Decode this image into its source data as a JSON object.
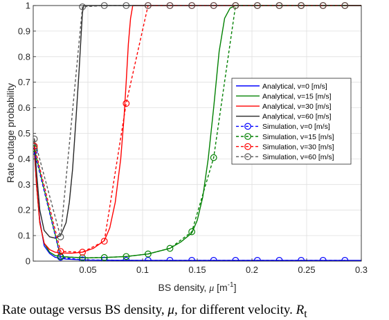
{
  "chart_data": {
    "type": "line",
    "title": "",
    "xlabel_main": "BS density, ",
    "xlabel_symbol": "μ",
    "xlabel_unit_open": " [m",
    "xlabel_unit_exp": "-1",
    "xlabel_unit_close": "]",
    "ylabel": "Rate outage probability",
    "xlim": [
      0,
      0.3
    ],
    "ylim": [
      0,
      1
    ],
    "xticks": [
      0.05,
      0.1,
      0.15,
      0.2,
      0.25,
      0.3
    ],
    "xtick_labels": [
      "0.05",
      "0.1",
      "0.15",
      "0.2",
      "0.25",
      "0.3"
    ],
    "yticks": [
      0,
      0.1,
      0.2,
      0.3,
      0.4,
      0.5,
      0.6,
      0.7,
      0.8,
      0.9,
      1
    ],
    "ytick_labels": [
      "0",
      "0.1",
      "0.2",
      "0.3",
      "0.4",
      "0.5",
      "0.6",
      "0.7",
      "0.8",
      "0.9",
      "1"
    ],
    "grid": true,
    "legend_position": "center-right",
    "series": [
      {
        "name": "Analytical, v=0 [m/s]",
        "style": "solid",
        "marker": "none",
        "color": "#0000ff",
        "x": [
          0.001,
          0.003,
          0.006,
          0.01,
          0.015,
          0.02,
          0.03,
          0.05,
          0.1,
          0.15,
          0.2,
          0.25,
          0.3
        ],
        "y": [
          0.43,
          0.3,
          0.16,
          0.06,
          0.03,
          0.015,
          0.008,
          0.004,
          0.003,
          0.003,
          0.003,
          0.003,
          0.003
        ]
      },
      {
        "name": "Analytical, v=15 [m/s]",
        "style": "solid",
        "marker": "none",
        "color": "#008000",
        "x": [
          0.001,
          0.003,
          0.006,
          0.01,
          0.015,
          0.02,
          0.025,
          0.035,
          0.05,
          0.065,
          0.085,
          0.105,
          0.125,
          0.135,
          0.145,
          0.15,
          0.155,
          0.16,
          0.165,
          0.17,
          0.175,
          0.18,
          0.185,
          0.3
        ],
        "y": [
          0.44,
          0.3,
          0.15,
          0.07,
          0.035,
          0.022,
          0.018,
          0.015,
          0.013,
          0.014,
          0.018,
          0.028,
          0.05,
          0.075,
          0.11,
          0.16,
          0.25,
          0.4,
          0.6,
          0.82,
          0.95,
          0.99,
          1.0,
          1.0
        ]
      },
      {
        "name": "Analytical, v=30 [m/s]",
        "style": "solid",
        "marker": "none",
        "color": "#ff0000",
        "x": [
          0.001,
          0.003,
          0.006,
          0.01,
          0.015,
          0.02,
          0.025,
          0.035,
          0.045,
          0.055,
          0.065,
          0.07,
          0.075,
          0.08,
          0.083,
          0.085,
          0.087,
          0.089,
          0.091,
          0.3
        ],
        "y": [
          0.45,
          0.3,
          0.15,
          0.07,
          0.045,
          0.035,
          0.032,
          0.031,
          0.035,
          0.05,
          0.08,
          0.13,
          0.23,
          0.4,
          0.56,
          0.7,
          0.85,
          0.95,
          1.0,
          1.0
        ]
      },
      {
        "name": "Analytical, v=60 [m/s]",
        "style": "solid",
        "marker": "none",
        "color": "#262626",
        "x": [
          0.001,
          0.003,
          0.006,
          0.01,
          0.015,
          0.02,
          0.025,
          0.03,
          0.033,
          0.036,
          0.039,
          0.042,
          0.044,
          0.045,
          0.046,
          0.3
        ],
        "y": [
          0.48,
          0.35,
          0.2,
          0.12,
          0.095,
          0.09,
          0.1,
          0.15,
          0.23,
          0.36,
          0.55,
          0.75,
          0.9,
          0.97,
          1.0,
          1.0
        ]
      },
      {
        "name": "Simulation, v=0 [m/s]",
        "style": "dashed",
        "marker": "circle",
        "color": "#0000ff",
        "x": [
          0.001,
          0.025,
          0.045,
          0.065,
          0.085,
          0.105,
          0.125,
          0.145,
          0.165,
          0.185,
          0.205,
          0.225,
          0.245,
          0.265,
          0.285
        ],
        "y": [
          0.43,
          0.015,
          0.005,
          0.004,
          0.003,
          0.003,
          0.003,
          0.003,
          0.003,
          0.003,
          0.003,
          0.003,
          0.003,
          0.003,
          0.003
        ]
      },
      {
        "name": "Simulation, v=15 [m/s]",
        "style": "dashed",
        "marker": "circle",
        "color": "#008000",
        "x": [
          0.001,
          0.025,
          0.045,
          0.065,
          0.085,
          0.105,
          0.125,
          0.145,
          0.165,
          0.185,
          0.205,
          0.225,
          0.245,
          0.265,
          0.285
        ],
        "y": [
          0.44,
          0.018,
          0.013,
          0.014,
          0.018,
          0.028,
          0.05,
          0.115,
          0.405,
          1.0,
          1.0,
          1.0,
          1.0,
          1.0,
          1.0
        ]
      },
      {
        "name": "Simulation, v=30 [m/s]",
        "style": "dashed",
        "marker": "circle",
        "color": "#ff0000",
        "x": [
          0.001,
          0.025,
          0.045,
          0.065,
          0.085,
          0.105,
          0.125,
          0.145,
          0.165,
          0.185,
          0.205,
          0.225,
          0.245,
          0.265,
          0.285
        ],
        "y": [
          0.45,
          0.038,
          0.035,
          0.078,
          0.617,
          1.0,
          1.0,
          1.0,
          1.0,
          1.0,
          1.0,
          1.0,
          1.0,
          1.0,
          1.0
        ]
      },
      {
        "name": "Simulation, v=60 [m/s]",
        "style": "dashed",
        "marker": "circle",
        "color": "#5a5a5a",
        "x": [
          0.001,
          0.025,
          0.045,
          0.065,
          0.085,
          0.105,
          0.125,
          0.145,
          0.165,
          0.185,
          0.205,
          0.225,
          0.245,
          0.265,
          0.285
        ],
        "y": [
          0.478,
          0.095,
          0.995,
          1.0,
          1.0,
          1.0,
          1.0,
          1.0,
          1.0,
          1.0,
          1.0,
          1.0,
          1.0,
          1.0,
          1.0
        ]
      }
    ]
  },
  "caption": {
    "text_a": "Rate outage versus BS density, ",
    "symbol": "μ",
    "text_b": ", for different velocity. ",
    "r_symbol": "R",
    "r_sub": "t"
  }
}
